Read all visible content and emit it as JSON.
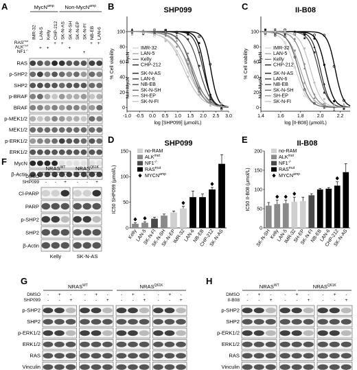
{
  "panels": {
    "A": "A",
    "B": "B",
    "C": "C",
    "D": "D",
    "E": "E",
    "F": "F",
    "G": "G",
    "H": "H"
  },
  "panel_a": {
    "group_mycn": "MycN",
    "group_mycn_sup": "amp",
    "group_non": "Non-MycN",
    "group_non_sup": "amp",
    "cell_lines": [
      "IMR-32",
      "LAN-5",
      "Kelly",
      "CHP-212",
      "SK-N-AS",
      "SK-N-SH",
      "SK-N-EP",
      "SK-N-FI",
      "NB-EB",
      "LAN-6"
    ],
    "mut_rows": [
      {
        "label": "RAS",
        "sup": "mut",
        "marks": [
          "",
          "",
          "",
          "+",
          "+",
          "",
          "",
          "",
          "+",
          "+"
        ]
      },
      {
        "label": "ALK",
        "sup": "mut",
        "marks": [
          "",
          "+",
          "+",
          "",
          "",
          "+",
          "",
          "",
          "",
          ""
        ]
      },
      {
        "label": "NF1",
        "sup": "-/-",
        "marks": [
          "",
          "",
          "",
          "",
          "",
          "",
          "",
          "+",
          "",
          ""
        ]
      }
    ],
    "blots": [
      "RAS",
      "p-SHP2",
      "SHP2",
      "p-BRAF",
      "BRAF",
      "p-MEK1/2",
      "MEK1/2",
      "p-ERK1/2",
      "ERK1/2",
      "MycN",
      "β-Actin"
    ]
  },
  "chart_data": [
    {
      "id": "B",
      "type": "line",
      "title": "SHP099",
      "xlabel": "log [SHP099] (μmol/L)",
      "ylabel": "% Cell viability",
      "xlim": [
        -1.0,
        3.0
      ],
      "ylim": [
        0,
        100
      ],
      "xticks": [
        "-1.0",
        "-0.5",
        "0.0",
        "0.5",
        "1.0",
        "1.5",
        "2.0",
        "2.5",
        "3.0"
      ],
      "yticks": [
        "0",
        "20",
        "40",
        "60",
        "80",
        "100"
      ],
      "group_labels": [
        "MycN",
        "Non-MycN"
      ],
      "series": [
        {
          "name": "IMR-32",
          "color": "#c8c8c8",
          "ic50": 1.35,
          "slope": 1.2
        },
        {
          "name": "LAN-5",
          "color": "#9a9a9a",
          "ic50": 1.5,
          "slope": 1.3
        },
        {
          "name": "Kelly",
          "color": "#6e6e6e",
          "ic50": 1.6,
          "slope": 1.6
        },
        {
          "name": "CHP-212",
          "color": "#000000",
          "ic50": 2.05,
          "slope": 3.0
        },
        {
          "name": "SK-N-AS",
          "color": "#000000",
          "ic50": 2.3,
          "slope": 3.2
        },
        {
          "name": "LAN-6",
          "color": "#111111",
          "ic50": 2.0,
          "slope": 2.5
        },
        {
          "name": "NB-EB",
          "color": "#333333",
          "ic50": 1.85,
          "slope": 2.0
        },
        {
          "name": "SK-N-SH",
          "color": "#555555",
          "ic50": 1.55,
          "slope": 1.8
        },
        {
          "name": "SH-EP",
          "color": "#888888",
          "ic50": 1.45,
          "slope": 1.5
        },
        {
          "name": "SK-N-FI",
          "color": "#bbbbbb",
          "ic50": 1.25,
          "slope": 1.3
        }
      ]
    },
    {
      "id": "C",
      "type": "line",
      "title": "II-B08",
      "xlabel": "log [II-B08] (μmol/L)",
      "ylabel": "% Cell viability",
      "xlim": [
        1.4,
        2.3
      ],
      "ylim": [
        0,
        100
      ],
      "xticks": [
        "1.4",
        "1.6",
        "1.8",
        "2.0",
        "2.2"
      ],
      "yticks": [
        "0",
        "20",
        "40",
        "60",
        "80",
        "100"
      ],
      "group_labels": [
        "MycN",
        "Non-MycN"
      ],
      "series": [
        {
          "name": "IMR-32",
          "color": "#c8c8c8",
          "ic50": 1.75,
          "slope": 7
        },
        {
          "name": "LAN-5",
          "color": "#9a9a9a",
          "ic50": 1.8,
          "slope": 7
        },
        {
          "name": "Kelly",
          "color": "#6e6e6e",
          "ic50": 1.85,
          "slope": 8
        },
        {
          "name": "CHP-212",
          "color": "#000000",
          "ic50": 2.05,
          "slope": 10
        },
        {
          "name": "SK-N-AS",
          "color": "#000000",
          "ic50": 2.15,
          "slope": 11
        },
        {
          "name": "LAN-6",
          "color": "#111111",
          "ic50": 2.0,
          "slope": 10
        },
        {
          "name": "NB-EB",
          "color": "#333333",
          "ic50": 1.98,
          "slope": 9
        },
        {
          "name": "SK-N-SH",
          "color": "#555555",
          "ic50": 1.78,
          "slope": 8
        },
        {
          "name": "SH-EP",
          "color": "#888888",
          "ic50": 1.85,
          "slope": 8
        },
        {
          "name": "SK-N-FI",
          "color": "#bbbbbb",
          "ic50": 1.9,
          "slope": 8
        }
      ]
    },
    {
      "id": "D",
      "type": "bar",
      "title": "SHP099",
      "ylabel": "IC50 SHP099 (μmol/L)",
      "ylim": [
        0,
        150
      ],
      "yticks": [
        "0",
        "50",
        "100",
        "150"
      ],
      "categories": [
        "Kelly",
        "LAN-5",
        "SK-N-FI",
        "SK-N-SH",
        "SK-N-EP",
        "IMR-32",
        "LAN-6",
        "NB-EB",
        "CHP-212",
        "SK-N-AS"
      ],
      "values": [
        8,
        10,
        18,
        24,
        30,
        38,
        60,
        60,
        75,
        125
      ],
      "errors": [
        2,
        2,
        3,
        3,
        3,
        4,
        12,
        6,
        4,
        18
      ],
      "groups": [
        "ALK",
        "ALK",
        "NF1",
        "ALK",
        "none",
        "none",
        "RAS",
        "RAS",
        "RAS",
        "RAS"
      ],
      "mycn": [
        true,
        true,
        false,
        false,
        false,
        true,
        false,
        false,
        true,
        false
      ],
      "legend": [
        {
          "label": "no-RAM",
          "sup": ""
        },
        {
          "label": "ALK",
          "sup": "mut"
        },
        {
          "label": "NF1",
          "sup": "-/-"
        },
        {
          "label": "RAS",
          "sup": "mut"
        },
        {
          "label": "MYCN",
          "sup": "amp"
        }
      ],
      "colors": {
        "none": "#d0d0d0",
        "ALK": "#8a8a8a",
        "NF1": "#4a4a4a",
        "RAS": "#000000"
      }
    },
    {
      "id": "E",
      "type": "bar",
      "title": "II-B08",
      "ylabel": "IC50 II-B08 (μmol/L)",
      "ylim": [
        0,
        200
      ],
      "yticks": [
        "0",
        "50",
        "100",
        "150",
        "200"
      ],
      "categories": [
        "SK-N-SH",
        "Kelly",
        "LAN-5",
        "IMR-32",
        "SH-EP",
        "SK-N-FI",
        "NB-EB",
        "LAN-6",
        "CHP-212",
        "SK-N-AS"
      ],
      "values": [
        58,
        62,
        64,
        68,
        70,
        85,
        100,
        102,
        110,
        145
      ],
      "errors": [
        8,
        10,
        8,
        12,
        10,
        4,
        3,
        3,
        10,
        22
      ],
      "groups": [
        "ALK",
        "ALK",
        "ALK",
        "none",
        "none",
        "NF1",
        "RAS",
        "RAS",
        "RAS",
        "RAS"
      ],
      "mycn": [
        false,
        true,
        true,
        true,
        false,
        false,
        false,
        false,
        true,
        false
      ],
      "legend": [
        {
          "label": "no-RAM",
          "sup": ""
        },
        {
          "label": "ALK",
          "sup": "mut"
        },
        {
          "label": "NF1",
          "sup": "-/-"
        },
        {
          "label": "RAS",
          "sup": "mut"
        },
        {
          "label": "MYCN",
          "sup": "amp"
        }
      ],
      "colors": {
        "none": "#d0d0d0",
        "ALK": "#8a8a8a",
        "NF1": "#4a4a4a",
        "RAS": "#000000"
      }
    }
  ],
  "panel_f": {
    "headers": [
      {
        "label": "NRAS",
        "sup": "WT"
      },
      {
        "label": "NRAS",
        "sup": "Q61K"
      }
    ],
    "treat_rows": [
      {
        "label": "DMSO",
        "marks": [
          "-",
          "+",
          "-",
          "-",
          "+",
          "-"
        ]
      },
      {
        "label": "SHP099",
        "marks": [
          "-",
          "-",
          "+",
          "-",
          "-",
          "+"
        ]
      }
    ],
    "blots": [
      "Cl-PARP",
      "PARP",
      "p-SHP2",
      "SHP2",
      "β-Actin"
    ],
    "cell_lines": [
      "Kelly",
      "SK-N-AS"
    ]
  },
  "panel_g": {
    "headers": [
      {
        "label": "NRAS",
        "sup": "WT"
      },
      {
        "label": "NRAS",
        "sup": "Q61K"
      }
    ],
    "treat_rows": [
      {
        "label": "DMSO",
        "marks": [
          "-",
          "+",
          "-",
          "-",
          "+",
          "-",
          "-",
          "+",
          "-",
          "-",
          "+",
          "-"
        ]
      },
      {
        "label": "SHP099",
        "marks": [
          "-",
          "-",
          "+",
          "-",
          "-",
          "+",
          "-",
          "-",
          "+",
          "-",
          "-",
          "+"
        ]
      }
    ],
    "blots": [
      "p-SHP2",
      "SHP2",
      "p-ERK1/2",
      "ERK1/2",
      "RAS",
      "Vinculin"
    ],
    "cell_lines": [
      "IMR-32",
      "SH-EP",
      "CHP-212",
      "SK-N-AS"
    ]
  },
  "panel_h": {
    "headers": [
      {
        "label": "NRAS",
        "sup": "WT"
      },
      {
        "label": "NRAS",
        "sup": "Q61K"
      }
    ],
    "treat_rows": [
      {
        "label": "DMSO",
        "marks": [
          "-",
          "+",
          "-",
          "-",
          "+",
          "-",
          "-",
          "+",
          "-"
        ]
      },
      {
        "label": "II-B08",
        "marks": [
          "-",
          "-",
          "+",
          "-",
          "-",
          "+",
          "-",
          "-",
          "+"
        ]
      }
    ],
    "blots": [
      "p-SHP2",
      "SHP2",
      "p-ERK1/2",
      "ERK1/2",
      "RAS",
      "Vinculin"
    ],
    "cell_lines": [
      "IMR-32",
      "CHP-212",
      "SK-N-AS"
    ]
  }
}
